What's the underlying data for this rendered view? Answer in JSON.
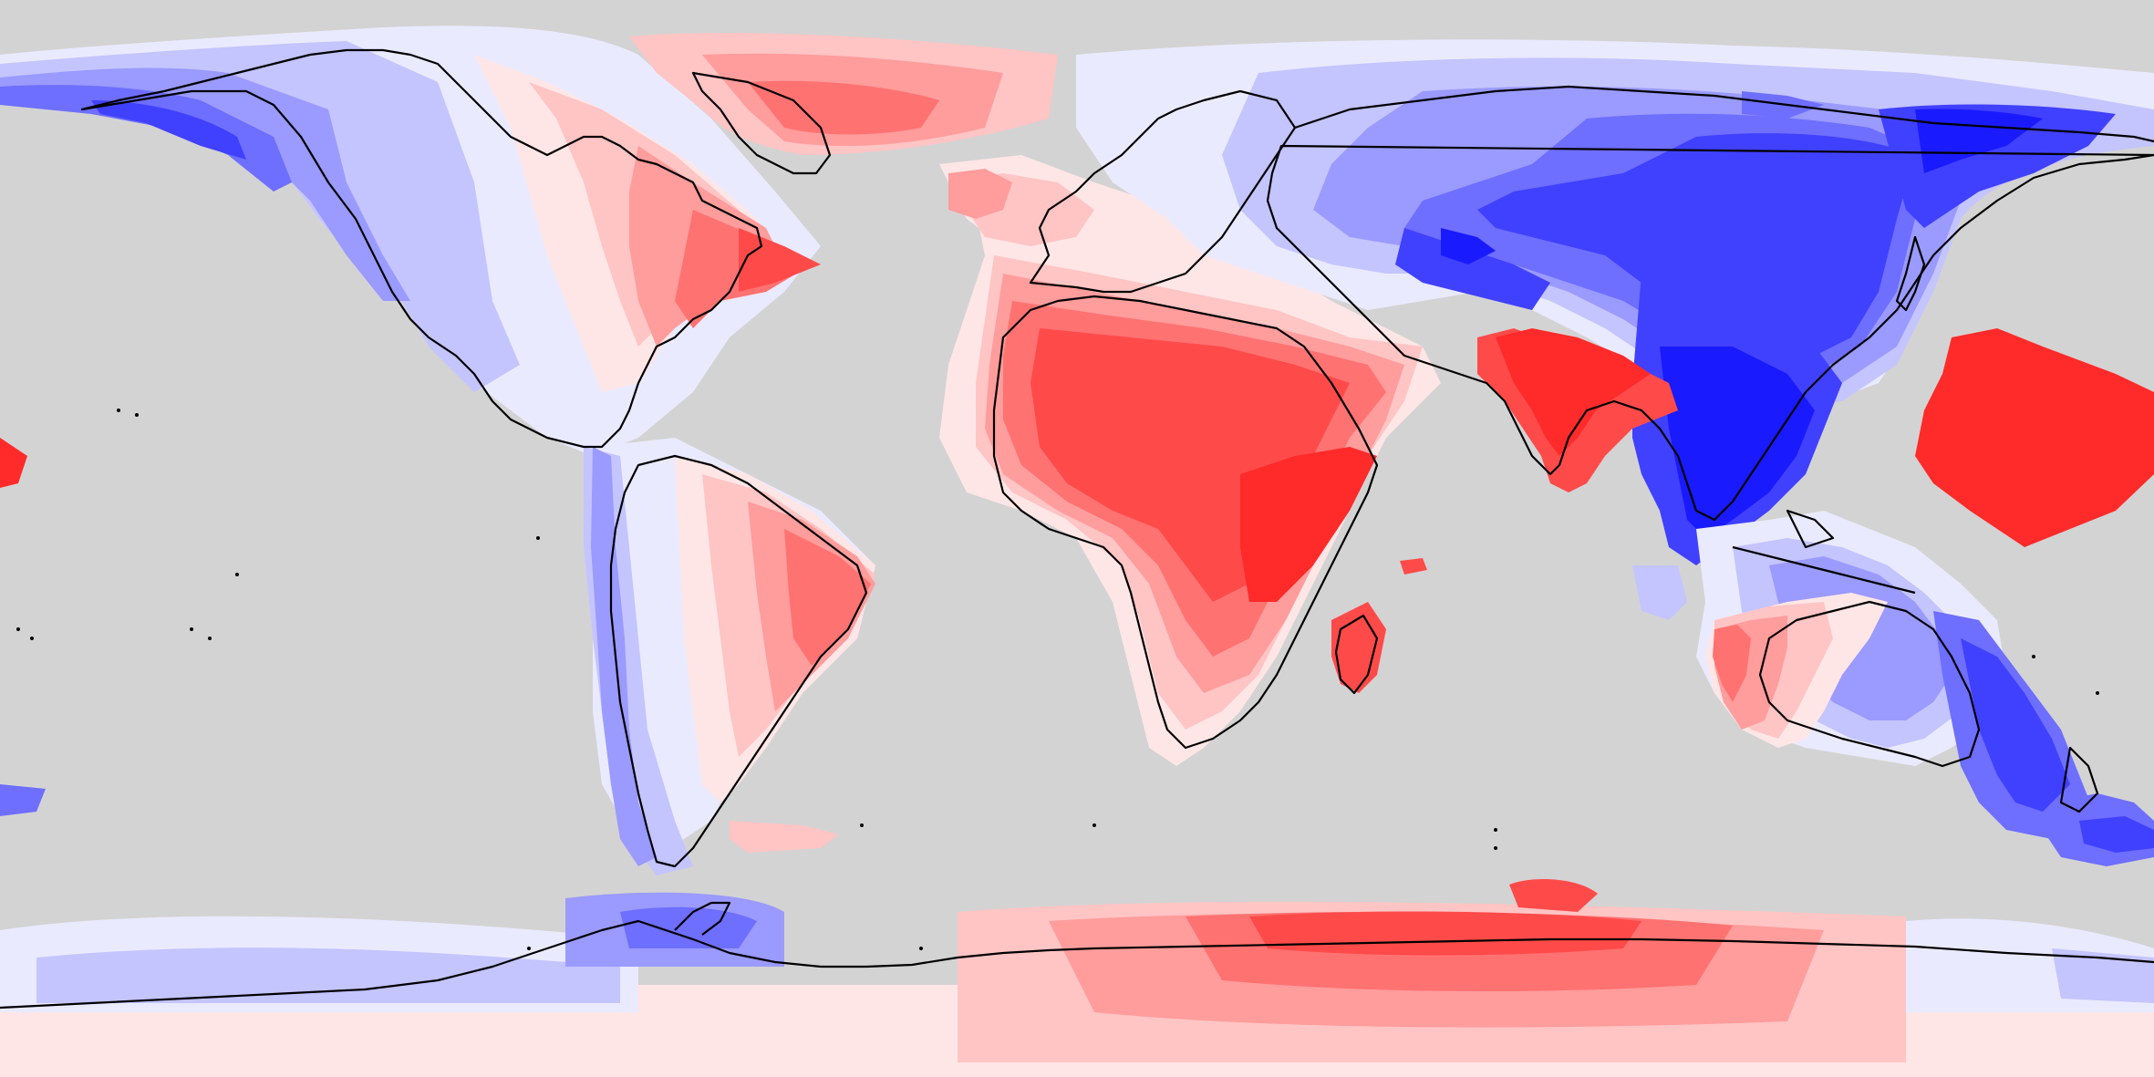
{
  "map": {
    "projection": "equirectangular",
    "background_color": "#d3d3d3",
    "coastline_color": "#000000",
    "color_scale": {
      "negative": [
        "#eaeaff",
        "#c4c4ff",
        "#9a9aff",
        "#6e6eff",
        "#4040ff",
        "#1a1aff"
      ],
      "neutral": "#ffffff",
      "positive": [
        "#ffe6e6",
        "#ffc4c4",
        "#ff9c9c",
        "#ff7272",
        "#ff4a4a",
        "#ff2a2a"
      ]
    }
  }
}
